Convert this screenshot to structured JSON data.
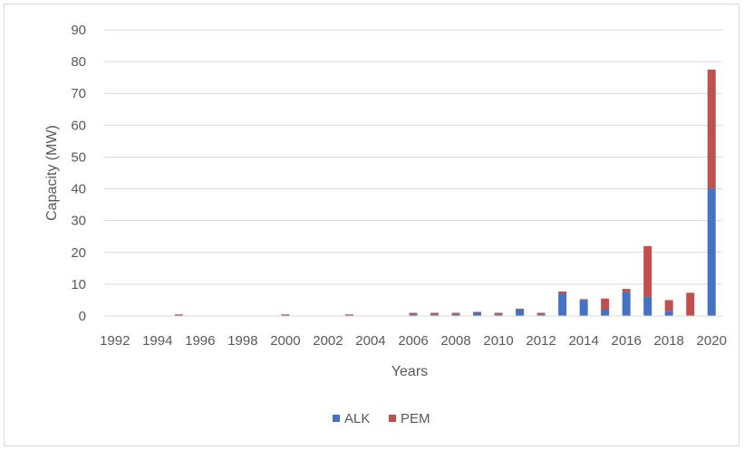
{
  "chart_data": {
    "type": "bar",
    "stacked": true,
    "xlabel": "Years",
    "ylabel": "Capacity (MW)",
    "ylim": [
      0,
      90
    ],
    "yticks": [
      0,
      10,
      20,
      30,
      40,
      50,
      60,
      70,
      80,
      90
    ],
    "grid": true,
    "legend_position": "bottom",
    "categories": [
      1992,
      1993,
      1994,
      1995,
      1996,
      1997,
      1998,
      1999,
      2000,
      2001,
      2002,
      2003,
      2004,
      2005,
      2006,
      2007,
      2008,
      2009,
      2010,
      2011,
      2012,
      2013,
      2014,
      2015,
      2016,
      2017,
      2018,
      2019,
      2020
    ],
    "tick_labels": [
      "1992",
      "1994",
      "1996",
      "1998",
      "2000",
      "2002",
      "2004",
      "2006",
      "2008",
      "2010",
      "2012",
      "2014",
      "2016",
      "2018",
      "2020"
    ],
    "series": [
      {
        "name": "ALK",
        "color": "#4472c4",
        "values": [
          0,
          0,
          0,
          0,
          0,
          0,
          0,
          0,
          0,
          0,
          0,
          0,
          0,
          0,
          0.5,
          0.5,
          0.5,
          1,
          0.5,
          2,
          0.5,
          7,
          5,
          2,
          7.5,
          6,
          1.5,
          0,
          40
        ]
      },
      {
        "name": "PEM",
        "color": "#c0504d",
        "values": [
          0,
          0,
          0,
          0.5,
          0,
          0,
          0,
          0,
          0.5,
          0,
          0,
          0.5,
          0,
          0,
          0.5,
          0.5,
          0.5,
          0.3,
          0.5,
          0.3,
          0.5,
          0.7,
          0.3,
          3.5,
          1,
          16,
          3.5,
          7.3,
          37.5
        ]
      }
    ]
  }
}
